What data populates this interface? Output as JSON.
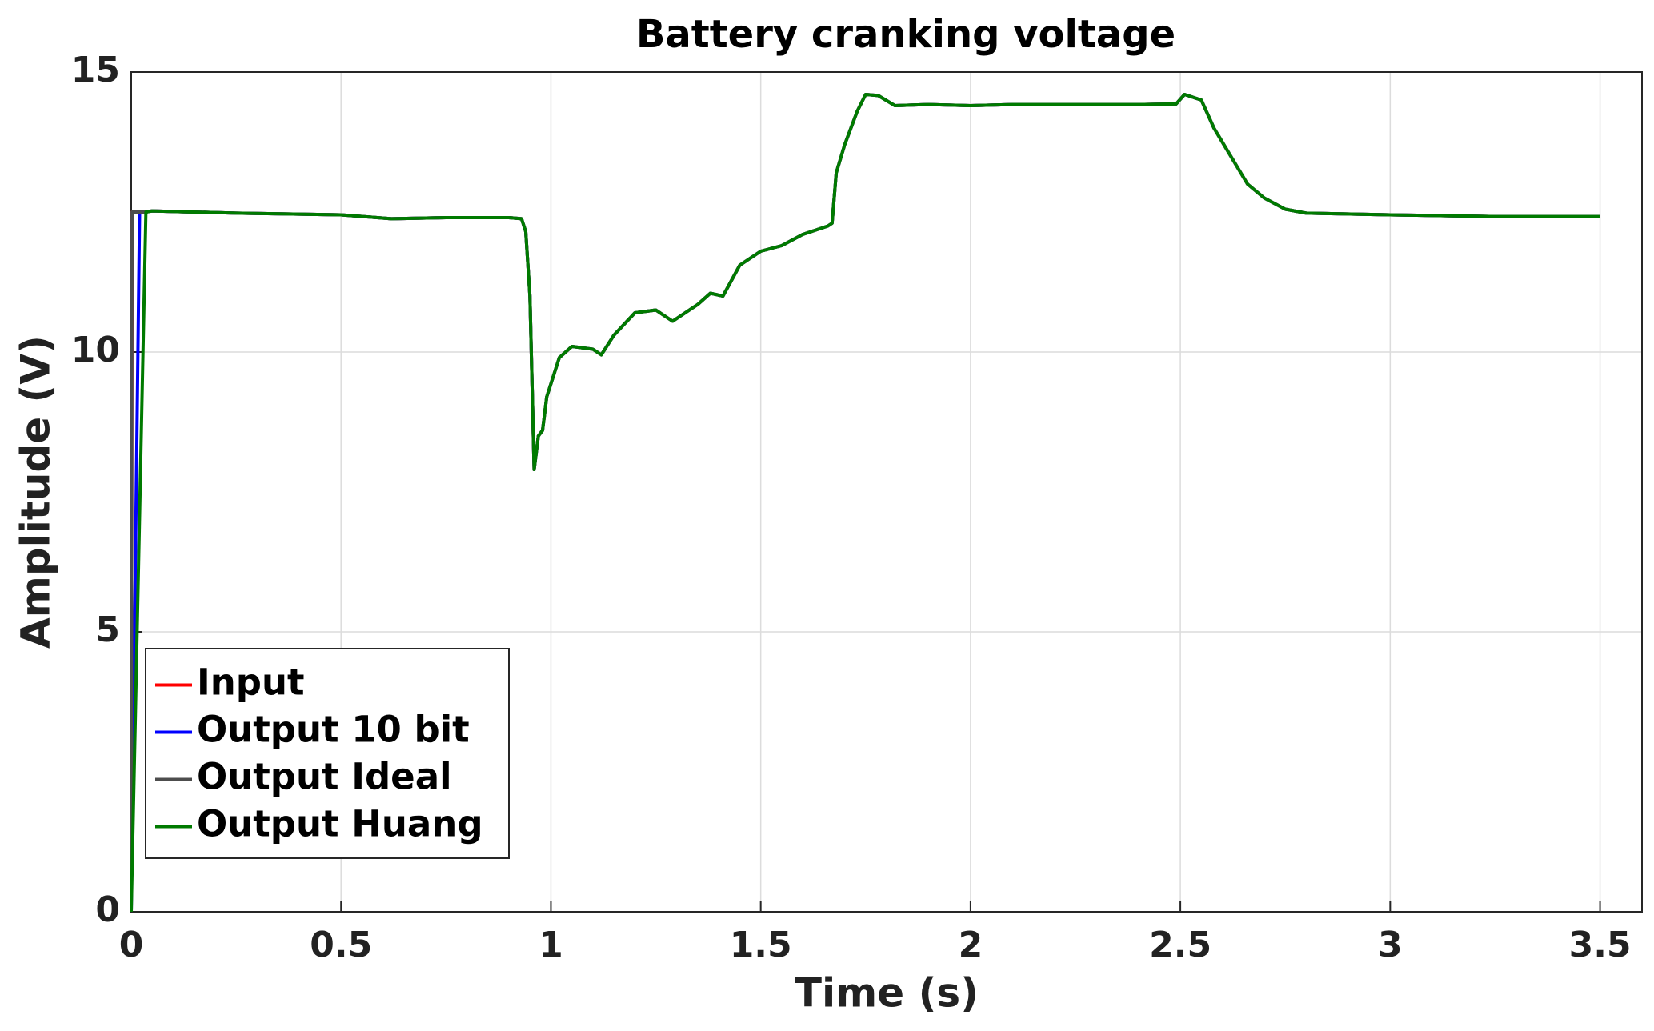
{
  "chart_data": {
    "type": "line",
    "title": "Battery cranking voltage",
    "x_label": "Time (s)",
    "y_label": "Amplitude (V)",
    "x": [
      0,
      0.002,
      0.02,
      0.035,
      0.05,
      0.25,
      0.5,
      0.62,
      0.75,
      0.9,
      0.93,
      0.94,
      0.95,
      0.96,
      0.97,
      0.98,
      0.99,
      1.02,
      1.05,
      1.1,
      1.12,
      1.15,
      1.2,
      1.25,
      1.29,
      1.35,
      1.38,
      1.41,
      1.45,
      1.5,
      1.55,
      1.6,
      1.66,
      1.67,
      1.68,
      1.7,
      1.73,
      1.75,
      1.78,
      1.82,
      1.9,
      2.0,
      2.1,
      2.2,
      2.3,
      2.4,
      2.49,
      2.51,
      2.55,
      2.58,
      2.62,
      2.66,
      2.7,
      2.75,
      2.8,
      3.0,
      3.25,
      3.5
    ],
    "series": [
      {
        "name": "Input",
        "color": "#ff0000",
        "values": [
          0,
          12.5,
          12.5,
          12.5,
          12.52,
          12.48,
          12.45,
          12.38,
          12.4,
          12.4,
          12.38,
          12.15,
          11.0,
          7.9,
          8.5,
          8.6,
          9.2,
          9.9,
          10.1,
          10.05,
          9.95,
          10.3,
          10.7,
          10.75,
          10.55,
          10.85,
          11.05,
          11.0,
          11.55,
          11.8,
          11.9,
          12.1,
          12.25,
          12.3,
          13.2,
          13.7,
          14.3,
          14.6,
          14.58,
          14.4,
          14.42,
          14.4,
          14.42,
          14.42,
          14.42,
          14.42,
          14.43,
          14.6,
          14.5,
          14.0,
          13.5,
          13.0,
          12.75,
          12.55,
          12.48,
          12.45,
          12.42,
          12.42
        ]
      },
      {
        "name": "Output 10 bit",
        "color": "#0000ff",
        "values": [
          0,
          1.25,
          12.5,
          12.5,
          12.52,
          12.48,
          12.45,
          12.38,
          12.4,
          12.4,
          12.38,
          12.15,
          11.0,
          7.9,
          8.5,
          8.6,
          9.2,
          9.9,
          10.1,
          10.05,
          9.95,
          10.3,
          10.7,
          10.75,
          10.55,
          10.85,
          11.05,
          11.0,
          11.55,
          11.8,
          11.9,
          12.1,
          12.25,
          12.3,
          13.2,
          13.7,
          14.3,
          14.6,
          14.58,
          14.4,
          14.42,
          14.4,
          14.42,
          14.42,
          14.42,
          14.42,
          14.43,
          14.6,
          14.5,
          14.0,
          13.5,
          13.0,
          12.75,
          12.55,
          12.48,
          12.45,
          12.42,
          12.42
        ]
      },
      {
        "name": "Output Ideal",
        "color": "#4d4d4d",
        "values": [
          0,
          12.5,
          12.5,
          12.5,
          12.52,
          12.48,
          12.45,
          12.38,
          12.4,
          12.4,
          12.38,
          12.15,
          11.0,
          7.9,
          8.5,
          8.6,
          9.2,
          9.9,
          10.1,
          10.05,
          9.95,
          10.3,
          10.7,
          10.75,
          10.55,
          10.85,
          11.05,
          11.0,
          11.55,
          11.8,
          11.9,
          12.1,
          12.25,
          12.3,
          13.2,
          13.7,
          14.3,
          14.6,
          14.58,
          14.4,
          14.42,
          14.4,
          14.42,
          14.42,
          14.42,
          14.42,
          14.43,
          14.6,
          14.5,
          14.0,
          13.5,
          13.0,
          12.75,
          12.55,
          12.48,
          12.45,
          12.42,
          12.42
        ]
      },
      {
        "name": "Output Huang",
        "color": "#007a00",
        "values": [
          0,
          0.7,
          7.1,
          12.5,
          12.52,
          12.48,
          12.45,
          12.38,
          12.4,
          12.4,
          12.38,
          12.15,
          11.0,
          7.9,
          8.5,
          8.6,
          9.2,
          9.9,
          10.1,
          10.05,
          9.95,
          10.3,
          10.7,
          10.75,
          10.55,
          10.85,
          11.05,
          11.0,
          11.55,
          11.8,
          11.9,
          12.1,
          12.25,
          12.3,
          13.2,
          13.7,
          14.3,
          14.6,
          14.58,
          14.4,
          14.42,
          14.4,
          14.42,
          14.42,
          14.42,
          14.42,
          14.43,
          14.6,
          14.5,
          14.0,
          13.5,
          13.0,
          12.75,
          12.55,
          12.48,
          12.45,
          12.42,
          12.42
        ]
      }
    ],
    "xlim": [
      0,
      3.6
    ],
    "xticks": [
      0,
      0.5,
      1,
      1.5,
      2,
      2.5,
      3,
      3.5
    ],
    "ylim": [
      0,
      15
    ],
    "yticks": [
      0,
      5,
      10,
      15
    ],
    "grid": true,
    "legend": "lower-left"
  }
}
